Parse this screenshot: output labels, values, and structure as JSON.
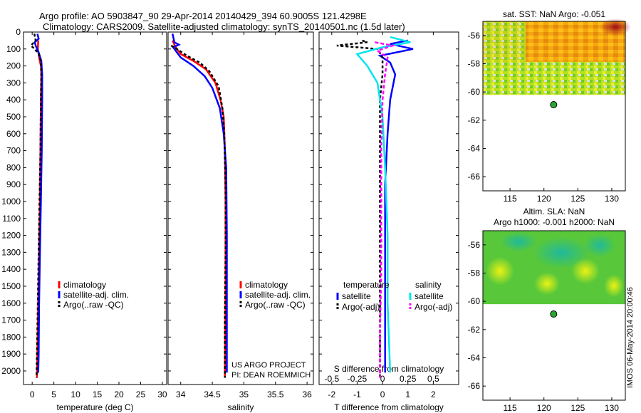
{
  "title_line1": "Argo profile: AO 5903847_90 29-Apr-2014 20140429_394 60.9005S 121.4298E",
  "title_line2": "Climatology: CARS2009. Satellite-adjusted climatology: synTS_20140501.nc (1.5d later)",
  "footer_stamp": "IMOS 06-May-2014 20:00:46",
  "project_line1": "US ARGO PROJECT",
  "project_line2": "PI: DEAN ROEMMICH",
  "colors": {
    "climatology": "#ff0000",
    "satellite": "#0000ff",
    "argo": "#000000",
    "sal_satellite": "#00e5ee",
    "sal_argo": "#ff00ff"
  },
  "chart_data": [
    {
      "name": "temperature-profile",
      "type": "line",
      "xlabel": "temperature (deg C)",
      "xlim": [
        -2,
        31
      ],
      "ylim": [
        0,
        2080
      ],
      "xticks": [
        0,
        5,
        10,
        15,
        20,
        25,
        30
      ],
      "yticks": [
        0,
        100,
        200,
        300,
        400,
        500,
        600,
        700,
        800,
        900,
        1000,
        1100,
        1200,
        1300,
        1400,
        1500,
        1600,
        1700,
        1800,
        1900,
        2000
      ],
      "legend": [
        "climatology",
        "satellite-adj. clim.",
        "Argo(..raw -QC)"
      ],
      "series": [
        {
          "key": "climatology",
          "color": "#ff0000",
          "dash": "",
          "points": [
            [
              1.4,
              50
            ],
            [
              1.3,
              100
            ],
            [
              1.6,
              150
            ],
            [
              2.0,
              200
            ],
            [
              2.1,
              250
            ],
            [
              2.0,
              400
            ],
            [
              1.9,
              700
            ],
            [
              1.8,
              1000
            ],
            [
              1.6,
              1300
            ],
            [
              1.4,
              1600
            ],
            [
              1.2,
              1900
            ],
            [
              1.1,
              2040
            ]
          ]
        },
        {
          "key": "satellite",
          "color": "#0000ff",
          "dash": "",
          "points": [
            [
              1.2,
              10
            ],
            [
              1.5,
              40
            ],
            [
              0.6,
              60
            ],
            [
              0.8,
              80
            ],
            [
              1.5,
              120
            ],
            [
              2.1,
              170
            ],
            [
              2.3,
              250
            ],
            [
              2.3,
              400
            ],
            [
              2.2,
              700
            ],
            [
              2.0,
              1000
            ],
            [
              1.8,
              1300
            ],
            [
              1.6,
              1600
            ],
            [
              1.5,
              1900
            ],
            [
              1.4,
              2010
            ]
          ]
        },
        {
          "key": "argo",
          "color": "#000000",
          "dash": "4,3",
          "points": [
            [
              0.5,
              10
            ],
            [
              0.8,
              50
            ],
            [
              -0.3,
              80
            ],
            [
              0.6,
              100
            ],
            [
              1.5,
              130
            ],
            [
              2.0,
              170
            ],
            [
              2.1,
              250
            ],
            [
              2.0,
              400
            ],
            [
              1.9,
              700
            ],
            [
              1.7,
              1000
            ],
            [
              1.5,
              1300
            ],
            [
              1.3,
              1600
            ],
            [
              1.1,
              1900
            ],
            [
              1.0,
              2040
            ]
          ]
        }
      ]
    },
    {
      "name": "salinity-profile",
      "type": "line",
      "xlabel": "salinity",
      "xlim": [
        33.8,
        36.1
      ],
      "ylim": [
        0,
        2080
      ],
      "xticks": [
        34,
        34.5,
        35,
        35.5,
        36
      ],
      "legend": [
        "climatology",
        "satellite-adj. clim.",
        "Argo(..raw -QC)"
      ],
      "series": [
        {
          "key": "climatology",
          "color": "#ff0000",
          "dash": "",
          "points": [
            [
              33.87,
              50
            ],
            [
              33.92,
              90
            ],
            [
              34.0,
              130
            ],
            [
              34.2,
              170
            ],
            [
              34.4,
              220
            ],
            [
              34.55,
              300
            ],
            [
              34.63,
              400
            ],
            [
              34.68,
              500
            ],
            [
              34.7,
              700
            ],
            [
              34.71,
              1000
            ],
            [
              34.71,
              1500
            ],
            [
              34.7,
              2040
            ]
          ]
        },
        {
          "key": "satellite",
          "color": "#0000ff",
          "dash": "",
          "points": [
            [
              33.87,
              10
            ],
            [
              33.9,
              60
            ],
            [
              33.97,
              75
            ],
            [
              33.88,
              90
            ],
            [
              34.0,
              150
            ],
            [
              34.2,
              200
            ],
            [
              34.38,
              260
            ],
            [
              34.5,
              330
            ],
            [
              34.62,
              450
            ],
            [
              34.68,
              600
            ],
            [
              34.72,
              800
            ],
            [
              34.73,
              1200
            ],
            [
              34.73,
              1600
            ],
            [
              34.73,
              2010
            ]
          ]
        },
        {
          "key": "argo",
          "color": "#000000",
          "dash": "4,3",
          "points": [
            [
              33.85,
              80
            ],
            [
              33.94,
              100
            ],
            [
              34.1,
              140
            ],
            [
              34.3,
              180
            ],
            [
              34.45,
              230
            ],
            [
              34.6,
              320
            ],
            [
              34.66,
              450
            ],
            [
              34.69,
              600
            ],
            [
              34.71,
              900
            ],
            [
              34.71,
              1300
            ],
            [
              34.7,
              1700
            ],
            [
              34.7,
              2040
            ]
          ]
        }
      ]
    },
    {
      "name": "difference-profile",
      "type": "line",
      "xlabel": "T difference from climatology",
      "top_label": "S difference from climatology",
      "xlim": [
        -2.5,
        3
      ],
      "ylim": [
        0,
        2080
      ],
      "xticks": [
        -2,
        -1,
        0,
        1,
        2
      ],
      "sticks": [
        "-0.5",
        "-0.25",
        "0",
        "0.25",
        "0.5"
      ],
      "sticks_pos": [
        -2,
        -1,
        0,
        1,
        2
      ],
      "legend_t_title": "temperature",
      "legend_s_title": "salinity",
      "legend": [
        "satellite",
        "Argo(-adj)",
        "satellite",
        "Argo(-adj)"
      ],
      "series": [
        {
          "key": "t_satellite",
          "color": "#0000ff",
          "dash": "",
          "points": [
            [
              1.0,
              50
            ],
            [
              0.3,
              70
            ],
            [
              1.2,
              100
            ],
            [
              -0.1,
              140
            ],
            [
              0.3,
              180
            ],
            [
              0.5,
              250
            ],
            [
              0.3,
              400
            ],
            [
              0.2,
              600
            ],
            [
              0.1,
              900
            ],
            [
              0.1,
              1300
            ],
            [
              0.1,
              1700
            ],
            [
              0.1,
              2010
            ]
          ]
        },
        {
          "key": "t_argo",
          "color": "#000000",
          "dash": "4,3",
          "points": [
            [
              -0.8,
              50
            ],
            [
              -0.6,
              60
            ],
            [
              -1.8,
              80
            ],
            [
              -0.2,
              100
            ],
            [
              0,
              150
            ],
            [
              0,
              250
            ],
            [
              -0.1,
              400
            ],
            [
              -0.1,
              700
            ],
            [
              -0.1,
              1000
            ],
            [
              -0.1,
              1400
            ],
            [
              -0.1,
              1800
            ],
            [
              -0.1,
              2040
            ]
          ]
        },
        {
          "key": "s_satellite",
          "color": "#00e5ee",
          "dash": "",
          "points": [
            [
              0.3,
              30
            ],
            [
              1.1,
              60
            ],
            [
              0,
              90
            ],
            [
              -1.0,
              130
            ],
            [
              -0.6,
              200
            ],
            [
              -0.2,
              300
            ],
            [
              0,
              500
            ],
            [
              0.1,
              800
            ],
            [
              0.2,
              1200
            ],
            [
              0.2,
              1600
            ],
            [
              0.3,
              2010
            ]
          ]
        },
        {
          "key": "s_argo",
          "color": "#ff00ff",
          "dash": "5,3",
          "points": [
            [
              -0.3,
              60
            ],
            [
              0.4,
              80
            ],
            [
              -0.2,
              110
            ],
            [
              0.2,
              150
            ],
            [
              0.1,
              250
            ],
            [
              0,
              400
            ],
            [
              -0.05,
              700
            ],
            [
              -0.05,
              1000
            ],
            [
              -0.05,
              1400
            ],
            [
              -0.1,
              1800
            ],
            [
              -0.1,
              2040
            ]
          ]
        }
      ]
    },
    {
      "name": "sst-map",
      "type": "heatmap",
      "title": "sat. SST: NaN Argo: -0.051",
      "xlim": [
        111,
        132
      ],
      "ylim": [
        -67,
        -55
      ],
      "xticks": [
        115,
        120,
        125,
        130
      ],
      "yticks": [
        -56,
        -58,
        -60,
        -62,
        -64,
        -66
      ],
      "data_top": -55,
      "data_bottom": -60.2,
      "argo_point": [
        121.43,
        -60.9
      ]
    },
    {
      "name": "sla-map",
      "type": "heatmap",
      "title_line1": "Altim. SLA: NaN",
      "title_line2": "Argo h1000: -0.001 h2000: NaN",
      "xlim": [
        111,
        132
      ],
      "ylim": [
        -67,
        -55
      ],
      "xticks": [
        115,
        120,
        125,
        130
      ],
      "yticks": [
        -56,
        -58,
        -60,
        -62,
        -64,
        -66
      ],
      "data_top": -55,
      "data_bottom": -60.2,
      "argo_point": [
        121.43,
        -60.9
      ]
    }
  ]
}
